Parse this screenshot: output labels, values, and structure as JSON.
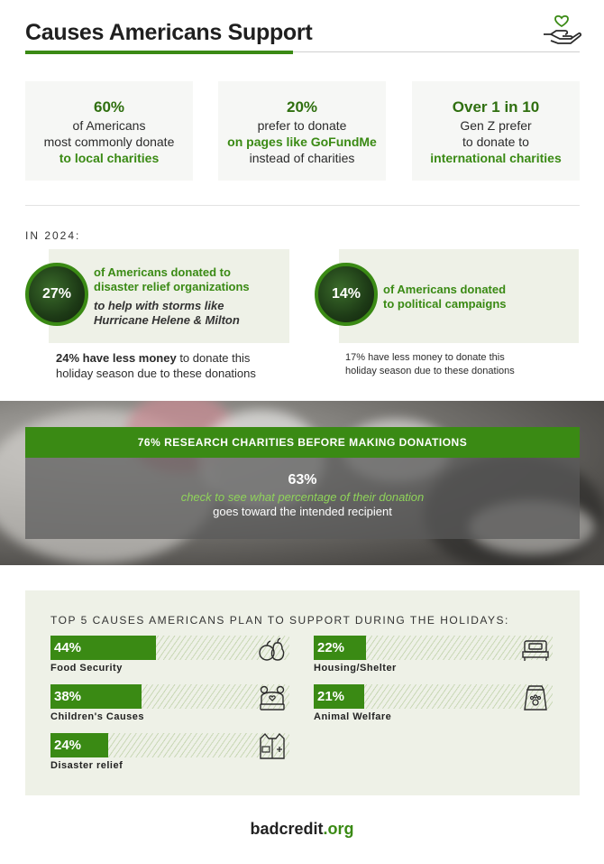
{
  "header": {
    "title": "Causes Americans Support"
  },
  "stats": [
    {
      "num": "60%",
      "line1": "of Americans",
      "line2": "most commonly donate",
      "highlight": "to local charities"
    },
    {
      "num": "20%",
      "line1": "prefer to donate",
      "highlight": "on pages like GoFundMe",
      "line2": "instead of charities"
    },
    {
      "num": "Over 1 in 10",
      "line1": "Gen Z prefer",
      "line2": "to donate to",
      "highlight": "international charities"
    }
  ],
  "year_section": {
    "label": "IN 2024:",
    "left": {
      "percent": "27%",
      "green_line1": "of Americans donated to",
      "green_line2": "disaster relief organizations",
      "italic_line1": "to help with storms like",
      "italic_line2": "Hurricane Helene & Milton",
      "note_bold": "24% have less money",
      "note_rest": " to donate this",
      "note_line2": "holiday season due to these donations"
    },
    "right": {
      "percent": "14%",
      "green_line1": "of Americans donated",
      "green_line2": "to political campaigns",
      "note_line1": "17% have less money to donate this",
      "note_line2": "holiday season due to these donations"
    }
  },
  "research": {
    "banner": "76% RESEARCH CHARITIES BEFORE MAKING DONATIONS",
    "num": "63%",
    "green": "check to see what percentage of their donation",
    "plain": "goes toward the intended recipient"
  },
  "causes": {
    "title": "TOP 5 CAUSES AMERICANS PLAN TO SUPPORT DURING THE HOLIDAYS:",
    "items": [
      {
        "percent": "44%",
        "value": 44,
        "label": "Food Security",
        "icon": "fruit-icon"
      },
      {
        "percent": "22%",
        "value": 22,
        "label": "Housing/Shelter",
        "icon": "bed-icon"
      },
      {
        "percent": "38%",
        "value": 38,
        "label": "Children's Causes",
        "icon": "bear-hat-icon"
      },
      {
        "percent": "21%",
        "value": 21,
        "label": "Animal Welfare",
        "icon": "pet-food-icon"
      },
      {
        "percent": "24%",
        "value": 24,
        "label": "Disaster relief",
        "icon": "vest-icon"
      }
    ]
  },
  "logo": {
    "main": "badcredit",
    "dot": ".",
    "tld": "org"
  },
  "colors": {
    "accent": "#3a8a14",
    "panel": "#eef1e7",
    "card": "#f6f7f5"
  }
}
